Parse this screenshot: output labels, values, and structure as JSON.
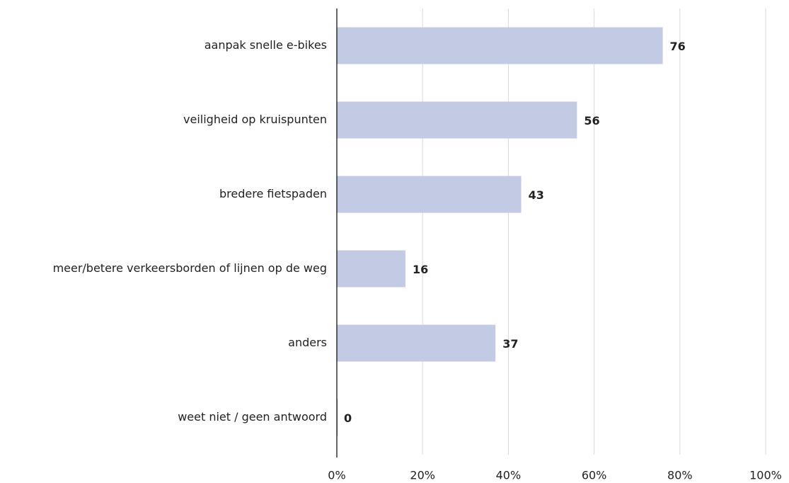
{
  "chart_data": {
    "type": "hbar",
    "categories": [
      "aanpak snelle e-bikes",
      "veiligheid op kruispunten",
      "bredere fietspaden",
      "meer/betere verkeersborden of lijnen op de weg",
      "anders",
      "weet niet / geen antwoord"
    ],
    "values": [
      76,
      56,
      43,
      16,
      37,
      0
    ],
    "color": "#c3cae4",
    "xlim": [
      0,
      100
    ],
    "xticks": [
      {
        "value": 0,
        "label": "0%"
      },
      {
        "value": 20,
        "label": "20%"
      },
      {
        "value": 40,
        "label": "40%"
      },
      {
        "value": 60,
        "label": "60%"
      },
      {
        "value": 80,
        "label": "80%"
      },
      {
        "value": 100,
        "label": "100%"
      }
    ],
    "grid": true
  }
}
